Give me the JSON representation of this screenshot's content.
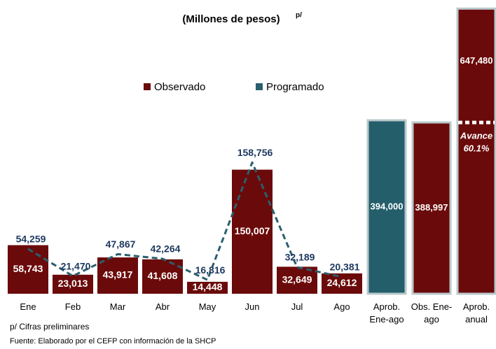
{
  "chart_data": {
    "type": "bar",
    "title": "(Millones de pesos)",
    "title_superscript": "p/",
    "categories": [
      "Ene",
      "Feb",
      "Mar",
      "Abr",
      "May",
      "Jun",
      "Jul",
      "Ago",
      "Aprob.\nEne-ago",
      "Obs. Ene-\nago",
      "Aprob.\nanual"
    ],
    "ylim": [
      0,
      345000
    ],
    "y2lim": [
      0,
      648000
    ],
    "series": [
      {
        "name": "Observado",
        "color": "#6b0a0a",
        "type": "bar",
        "values": [
          58743,
          23013,
          43917,
          41608,
          14448,
          150007,
          32649,
          24612,
          null,
          null,
          null
        ],
        "value_labels": [
          "58,743",
          "23,013",
          "43,917",
          "41,608",
          "14,448",
          "150,007",
          "32,649",
          "24,612",
          null,
          null,
          null
        ]
      },
      {
        "name": "Programado",
        "color": "#2b5f6d",
        "type": "line",
        "label_color": "#1f3a60",
        "values": [
          54259,
          21470,
          47867,
          42264,
          16816,
          158756,
          32189,
          20381,
          null,
          null,
          null
        ],
        "value_labels": [
          "54,259",
          "21,470",
          "47,867",
          "42,264",
          "16,816",
          "158,756",
          "32,189",
          "20,381",
          null,
          null,
          null
        ]
      },
      {
        "type": "bar",
        "axis": "y2",
        "colors": [
          null,
          null,
          null,
          null,
          null,
          null,
          null,
          null,
          "#245e6b",
          "#6b0a0a",
          "#6b0a0a"
        ],
        "values": [
          null,
          null,
          null,
          null,
          null,
          null,
          null,
          null,
          394000,
          388997,
          647480
        ],
        "value_labels": [
          null,
          null,
          null,
          null,
          null,
          null,
          null,
          null,
          "394,000",
          "388,997",
          "647,480"
        ]
      }
    ],
    "annotations": [
      "Avance",
      "60.1%"
    ],
    "footnotes": [
      "p/ Cifras preliminares",
      "Fuente: Elaborado por el CEFP con información de la SHCP"
    ]
  }
}
